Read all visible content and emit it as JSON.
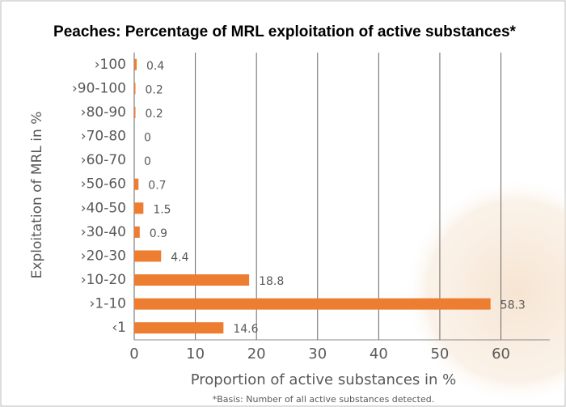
{
  "chart_data": {
    "type": "bar",
    "orientation": "horizontal",
    "title": "Peaches: Percentage of MRL exploitation of active substances*",
    "x_label": "Proportion of active substances in %",
    "y_label": "Exploitation of MRL in %",
    "footnote": "*Basis: Number of all active substances detected.",
    "categories": [
      "›100",
      "›90-100",
      "›80-90",
      "›70-80",
      "›60-70",
      "›50-60",
      "›40-50",
      "›30-40",
      "›20-30",
      "›10-20",
      "›1-10",
      "‹1"
    ],
    "values": [
      0.4,
      0.2,
      0.2,
      0,
      0,
      0.7,
      1.5,
      0.9,
      4.4,
      18.8,
      58.3,
      14.6
    ],
    "color": "#ed7d31",
    "xlim": [
      0,
      68
    ],
    "xticks": [
      0,
      10,
      20,
      30,
      40,
      50,
      60
    ],
    "grid": true
  }
}
